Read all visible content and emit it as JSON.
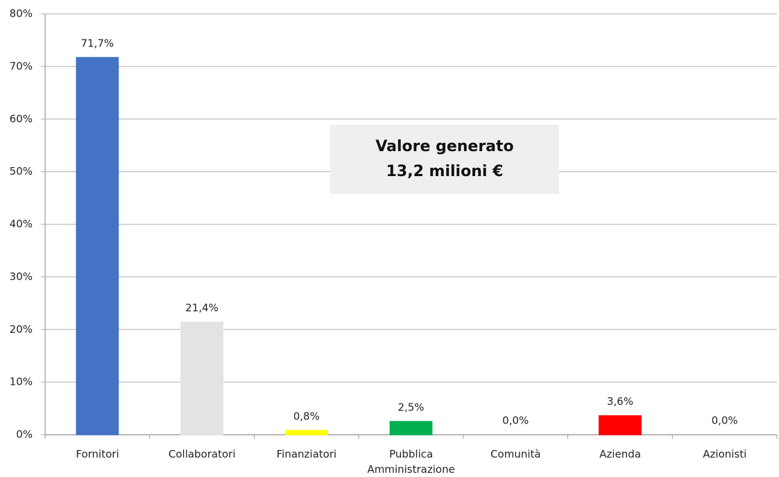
{
  "chart_data": {
    "type": "bar",
    "annotation": "Valore generato\n13,2 milioni €",
    "categories": [
      "Fornitori",
      "Collaboratori",
      "Finanziatori",
      "Pubblica\nAmministrazione",
      "Comunità",
      "Azienda",
      "Azionisti"
    ],
    "values": [
      71.7,
      21.4,
      0.8,
      2.5,
      0.0,
      3.6,
      0.0
    ],
    "value_labels": [
      "71,7%",
      "21,4%",
      "0,8%",
      "2,5%",
      "0,0%",
      "3,6%",
      "0,0%"
    ],
    "colors": [
      "#4472c4",
      "#e3e3e3",
      "#ffff00",
      "#00b050",
      "#5b8fd6",
      "#ff0000",
      "#ffffff"
    ],
    "ylim": [
      0,
      80
    ],
    "yticks": [
      {
        "value": 0,
        "label": "0%"
      },
      {
        "value": 10,
        "label": "10%"
      },
      {
        "value": 20,
        "label": "20%"
      },
      {
        "value": 30,
        "label": "30%"
      },
      {
        "value": 40,
        "label": "40%"
      },
      {
        "value": 50,
        "label": "50%"
      },
      {
        "value": 60,
        "label": "60%"
      },
      {
        "value": 70,
        "label": "70%"
      },
      {
        "value": 80,
        "label": "80%"
      }
    ],
    "grid": true
  }
}
